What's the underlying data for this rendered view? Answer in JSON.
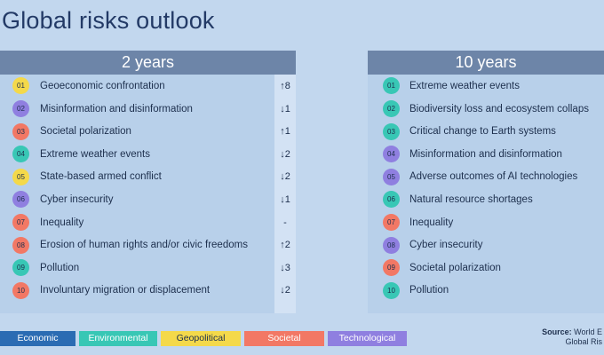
{
  "title": "Global risks outlook",
  "short_term": {
    "header": "2 years",
    "items": [
      {
        "rank": "01",
        "label": "Geoeconomic confrontation",
        "change": "↑8",
        "color": "#f4d94a"
      },
      {
        "rank": "02",
        "label": "Misinformation and disinformation",
        "change": "↓1",
        "color": "#8f7fe0"
      },
      {
        "rank": "03",
        "label": "Societal polarization",
        "change": "↑1",
        "color": "#f27865"
      },
      {
        "rank": "04",
        "label": "Extreme weather events",
        "change": "↓2",
        "color": "#38c7b5"
      },
      {
        "rank": "05",
        "label": "State-based armed conflict",
        "change": "↓2",
        "color": "#f4d94a"
      },
      {
        "rank": "06",
        "label": "Cyber insecurity",
        "change": "↓1",
        "color": "#8f7fe0"
      },
      {
        "rank": "07",
        "label": "Inequality",
        "change": "-",
        "color": "#f27865"
      },
      {
        "rank": "08",
        "label": "Erosion of human rights and/or civic freedoms",
        "change": "↑2",
        "color": "#f27865"
      },
      {
        "rank": "09",
        "label": "Pollution",
        "change": "↓3",
        "color": "#38c7b5"
      },
      {
        "rank": "10",
        "label": "Involuntary migration or displacement",
        "change": "↓2",
        "color": "#f27865"
      }
    ]
  },
  "long_term": {
    "header": "10 years",
    "items": [
      {
        "rank": "01",
        "label": "Extreme weather events",
        "color": "#38c7b5"
      },
      {
        "rank": "02",
        "label": "Biodiversity loss and ecosystem collaps",
        "color": "#38c7b5"
      },
      {
        "rank": "03",
        "label": "Critical change to Earth systems",
        "color": "#38c7b5"
      },
      {
        "rank": "04",
        "label": "Misinformation and disinformation",
        "color": "#8f7fe0"
      },
      {
        "rank": "05",
        "label": "Adverse outcomes of AI technologies",
        "color": "#8f7fe0"
      },
      {
        "rank": "06",
        "label": "Natural resource shortages",
        "color": "#38c7b5"
      },
      {
        "rank": "07",
        "label": "Inequality",
        "color": "#f27865"
      },
      {
        "rank": "08",
        "label": "Cyber insecurity",
        "color": "#8f7fe0"
      },
      {
        "rank": "09",
        "label": "Societal polarization",
        "color": "#f27865"
      },
      {
        "rank": "10",
        "label": "Pollution",
        "color": "#38c7b5"
      }
    ]
  },
  "legend": [
    {
      "label": "Economic",
      "color": "#2b6cb3"
    },
    {
      "label": "Environmental",
      "color": "#38c7b5"
    },
    {
      "label": "Geopolitical",
      "color": "#f4d94a"
    },
    {
      "label": "Societal",
      "color": "#f27865"
    },
    {
      "label": "Technological",
      "color": "#8f7fe0"
    }
  ],
  "source": {
    "label": "Source:",
    "line1": "World E",
    "line2": "Global Ris"
  }
}
